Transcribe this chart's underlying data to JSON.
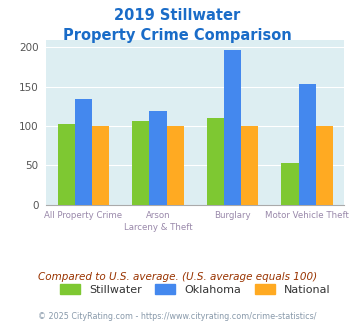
{
  "title_line1": "2019 Stillwater",
  "title_line2": "Property Crime Comparison",
  "title_color": "#1a6cc8",
  "stillwater": [
    102,
    106,
    110,
    53
  ],
  "oklahoma": [
    135,
    119,
    197,
    153
  ],
  "national": [
    100,
    100,
    100,
    100
  ],
  "stillwater_color": "#7ec832",
  "oklahoma_color": "#4488ee",
  "national_color": "#ffaa22",
  "ylim": [
    0,
    210
  ],
  "yticks": [
    0,
    50,
    100,
    150,
    200
  ],
  "plot_bg_color": "#ddeef2",
  "legend_labels": [
    "Stillwater",
    "Oklahoma",
    "National"
  ],
  "xlabel_row1": [
    "All Property Crime",
    "Arson",
    "Burglary",
    "Motor Vehicle Theft"
  ],
  "xlabel_row2": [
    "",
    "Larceny & Theft",
    "",
    ""
  ],
  "footnote": "Compared to U.S. average. (U.S. average equals 100)",
  "footnote_color": "#993300",
  "copyright": "© 2025 CityRating.com - https://www.cityrating.com/crime-statistics/",
  "copyright_color": "#8899aa",
  "bar_width": 0.23
}
